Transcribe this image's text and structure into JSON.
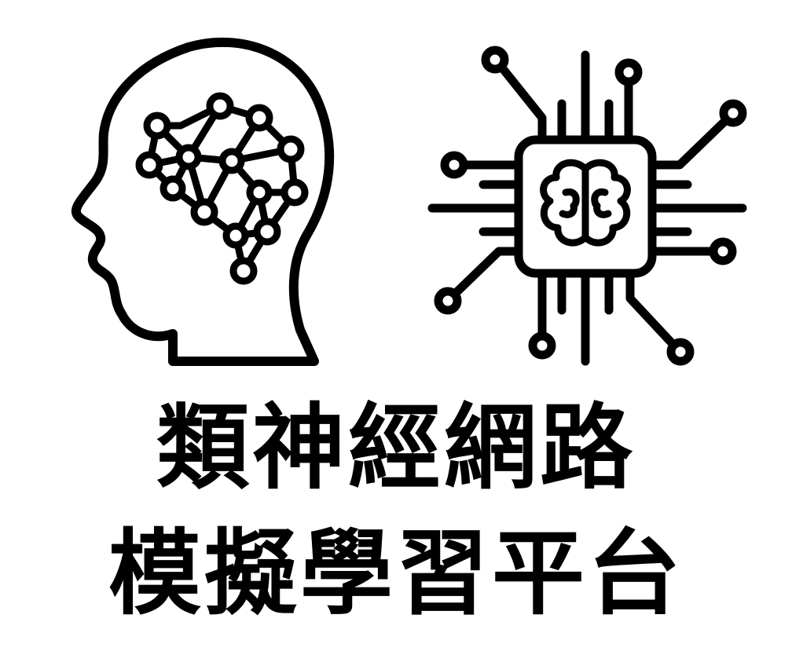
{
  "title": {
    "line1": "類神經網路",
    "line2": "模擬學習平台"
  },
  "icons": {
    "left": "brain-network-head-icon",
    "right": "ai-chip-brain-icon"
  },
  "colors": {
    "foreground": "#000000",
    "background": "#ffffff"
  }
}
